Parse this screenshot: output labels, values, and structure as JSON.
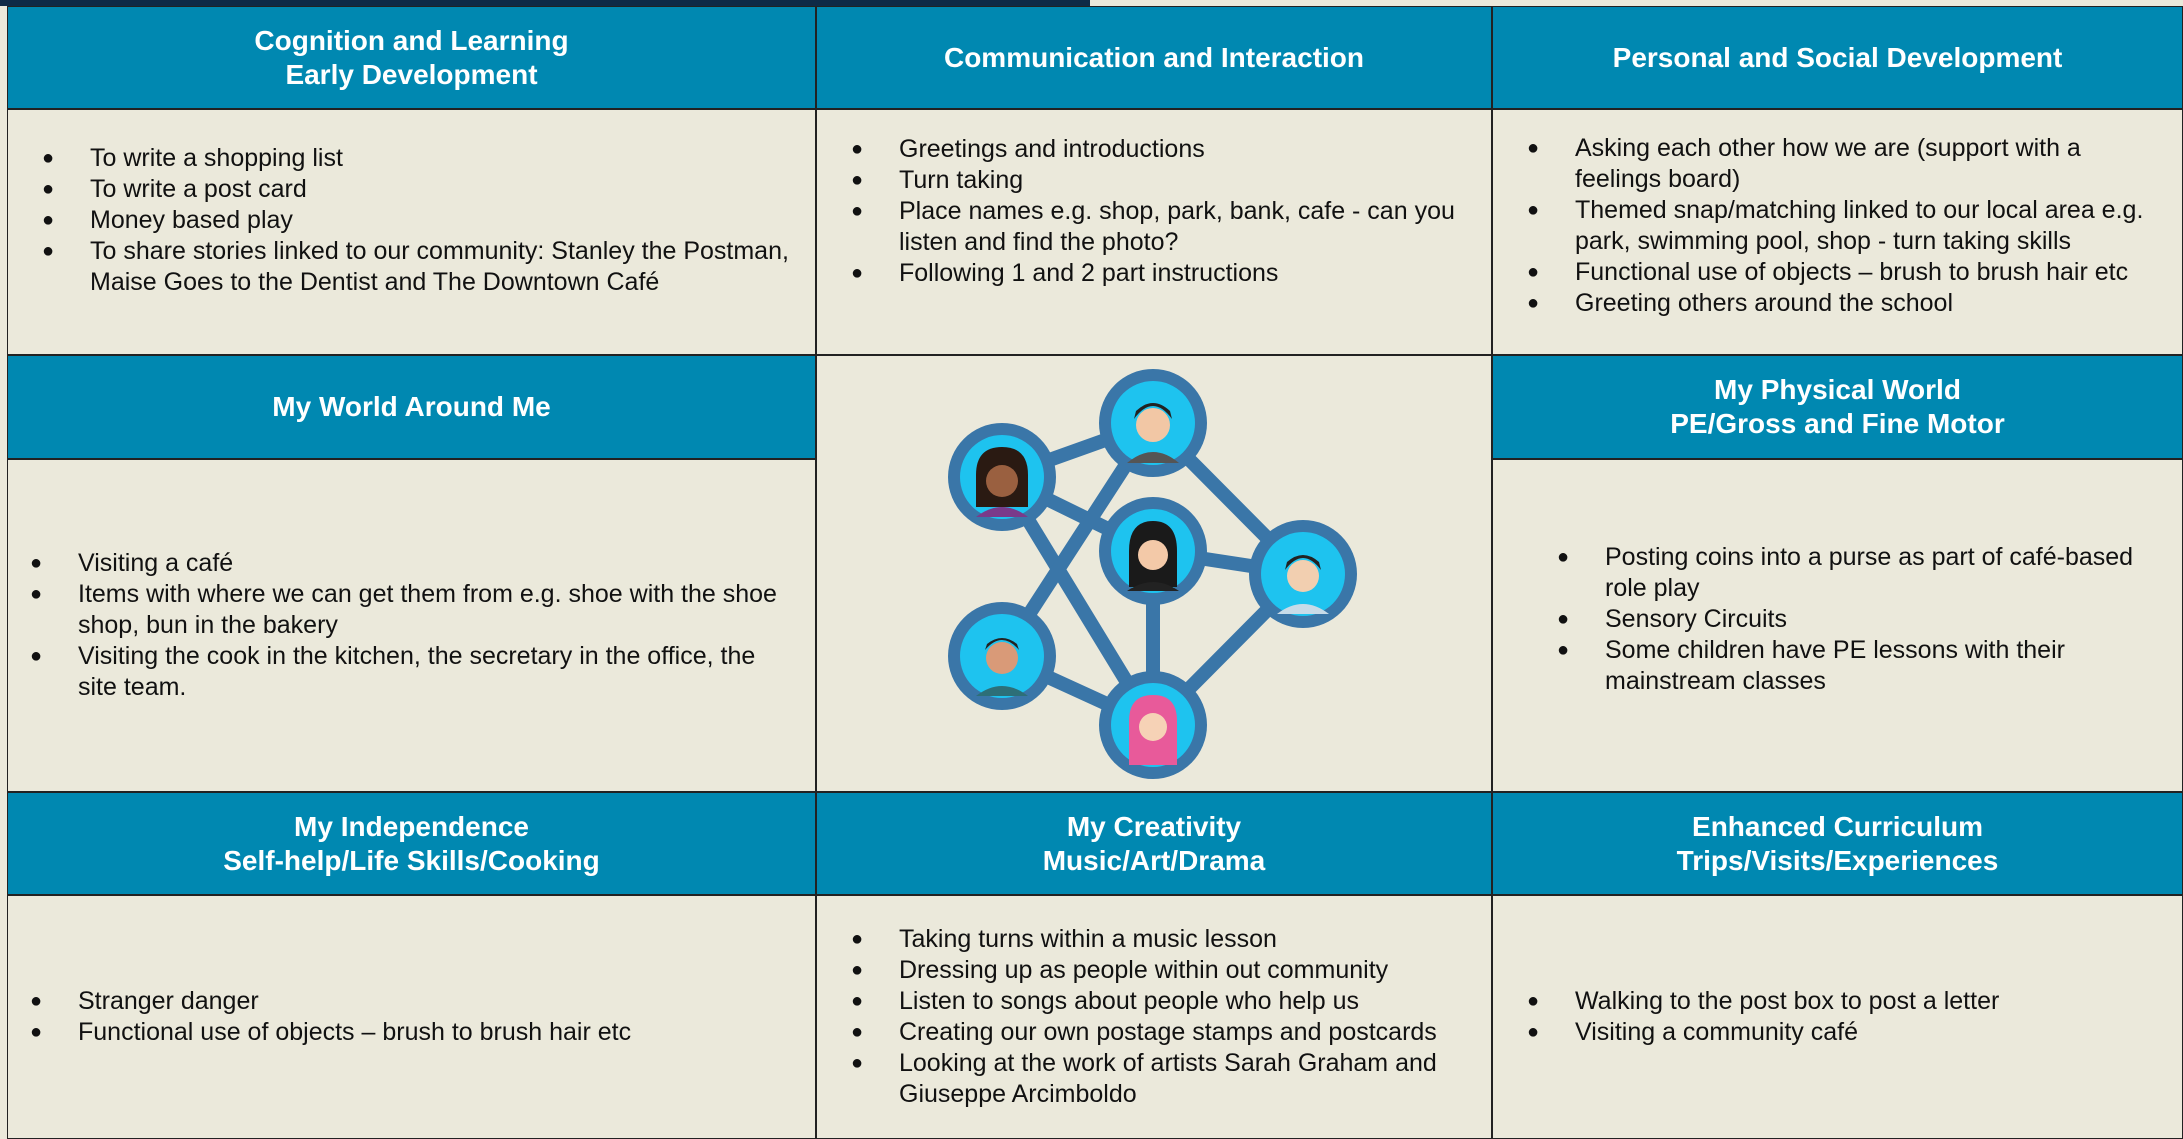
{
  "cells": [
    {
      "title": [
        "Cognition and Learning",
        "Early Development"
      ],
      "items": [
        "To write a shopping list",
        "To write a post card",
        "Money based play",
        "To share stories linked to our community: Stanley the Postman, Maise Goes to the Dentist and The Downtown Café"
      ]
    },
    {
      "title": [
        "Communication and Interaction"
      ],
      "items": [
        "Greetings and introductions",
        "Turn taking",
        "Place names e.g. shop, park, bank, cafe - can you listen and find the photo?",
        "Following 1 and 2 part instructions"
      ]
    },
    {
      "title": [
        "Personal and Social Development"
      ],
      "items": [
        "Asking each other how we are (support with a feelings board)",
        "Themed snap/matching linked to our local area e.g. park, swimming pool, shop - turn taking skills",
        "Functional use of objects – brush to brush hair etc",
        "Greeting others around the school"
      ]
    },
    {
      "title": [
        "My World Around Me"
      ],
      "items": [
        "Visiting a café",
        "Items with where we can get them from e.g. shoe with the shoe shop, bun in the bakery",
        "Visiting the cook in the kitchen, the secretary in the office, the site team."
      ]
    },
    {
      "title": [
        "My Physical World",
        "PE/Gross and Fine Motor"
      ],
      "items": [
        "Posting coins into a purse as part of café-based role play",
        "Sensory Circuits",
        "Some children have PE lessons with their mainstream classes"
      ]
    },
    {
      "title": [
        "My Independence",
        "Self-help/Life Skills/Cooking"
      ],
      "items": [
        "Stranger danger",
        "Functional use of objects – brush to brush hair etc"
      ]
    },
    {
      "title": [
        "My Creativity",
        "Music/Art/Drama"
      ],
      "items": [
        "Taking turns within a music lesson",
        "Dressing up as people within out community",
        "Listen to songs about people who help us",
        "Creating our own postage stamps and postcards",
        "Looking at the work of artists Sarah Graham and Giuseppe Arcimboldo"
      ]
    },
    {
      "title": [
        "Enhanced Curriculum",
        "Trips/Visits/Experiences"
      ],
      "items": [
        "Walking to the post box to post a letter",
        "Visiting a community café"
      ]
    }
  ]
}
